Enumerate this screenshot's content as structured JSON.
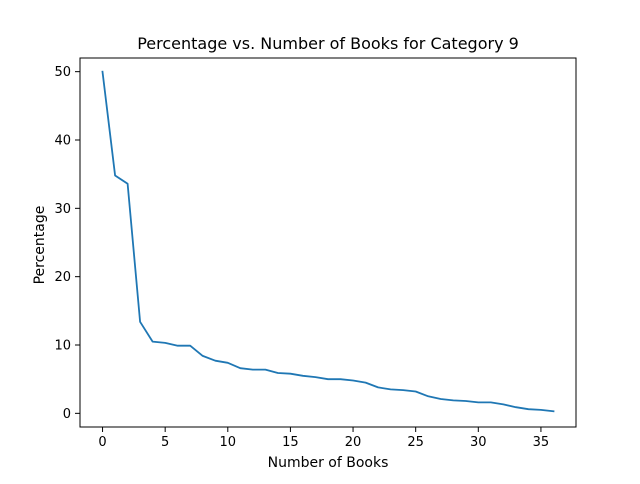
{
  "chart_data": {
    "type": "line",
    "title": "Percentage vs. Number of Books for Category 9",
    "xlabel": "Number of Books",
    "ylabel": "Percentage",
    "xlim": [
      -1.8,
      37.8
    ],
    "ylim": [
      -2.0,
      52.0
    ],
    "xticks": [
      0,
      5,
      10,
      15,
      20,
      25,
      30,
      35
    ],
    "yticks": [
      0,
      10,
      20,
      30,
      40,
      50
    ],
    "grid": false,
    "legend": "none",
    "series": [
      {
        "color": "#1f77b4",
        "x": [
          0,
          1,
          2,
          3,
          4,
          5,
          6,
          7,
          8,
          9,
          10,
          11,
          12,
          13,
          14,
          15,
          16,
          17,
          18,
          19,
          20,
          21,
          22,
          23,
          24,
          25,
          26,
          27,
          28,
          29,
          30,
          31,
          32,
          33,
          34,
          35,
          36
        ],
        "y": [
          50.0,
          34.8,
          33.6,
          13.4,
          10.5,
          10.3,
          9.9,
          9.9,
          8.4,
          7.7,
          7.4,
          6.6,
          6.4,
          6.4,
          5.9,
          5.8,
          5.5,
          5.3,
          5.0,
          5.0,
          4.8,
          4.5,
          3.8,
          3.5,
          3.4,
          3.2,
          2.5,
          2.1,
          1.9,
          1.8,
          1.6,
          1.6,
          1.3,
          0.9,
          0.6,
          0.5,
          0.3
        ]
      }
    ]
  }
}
